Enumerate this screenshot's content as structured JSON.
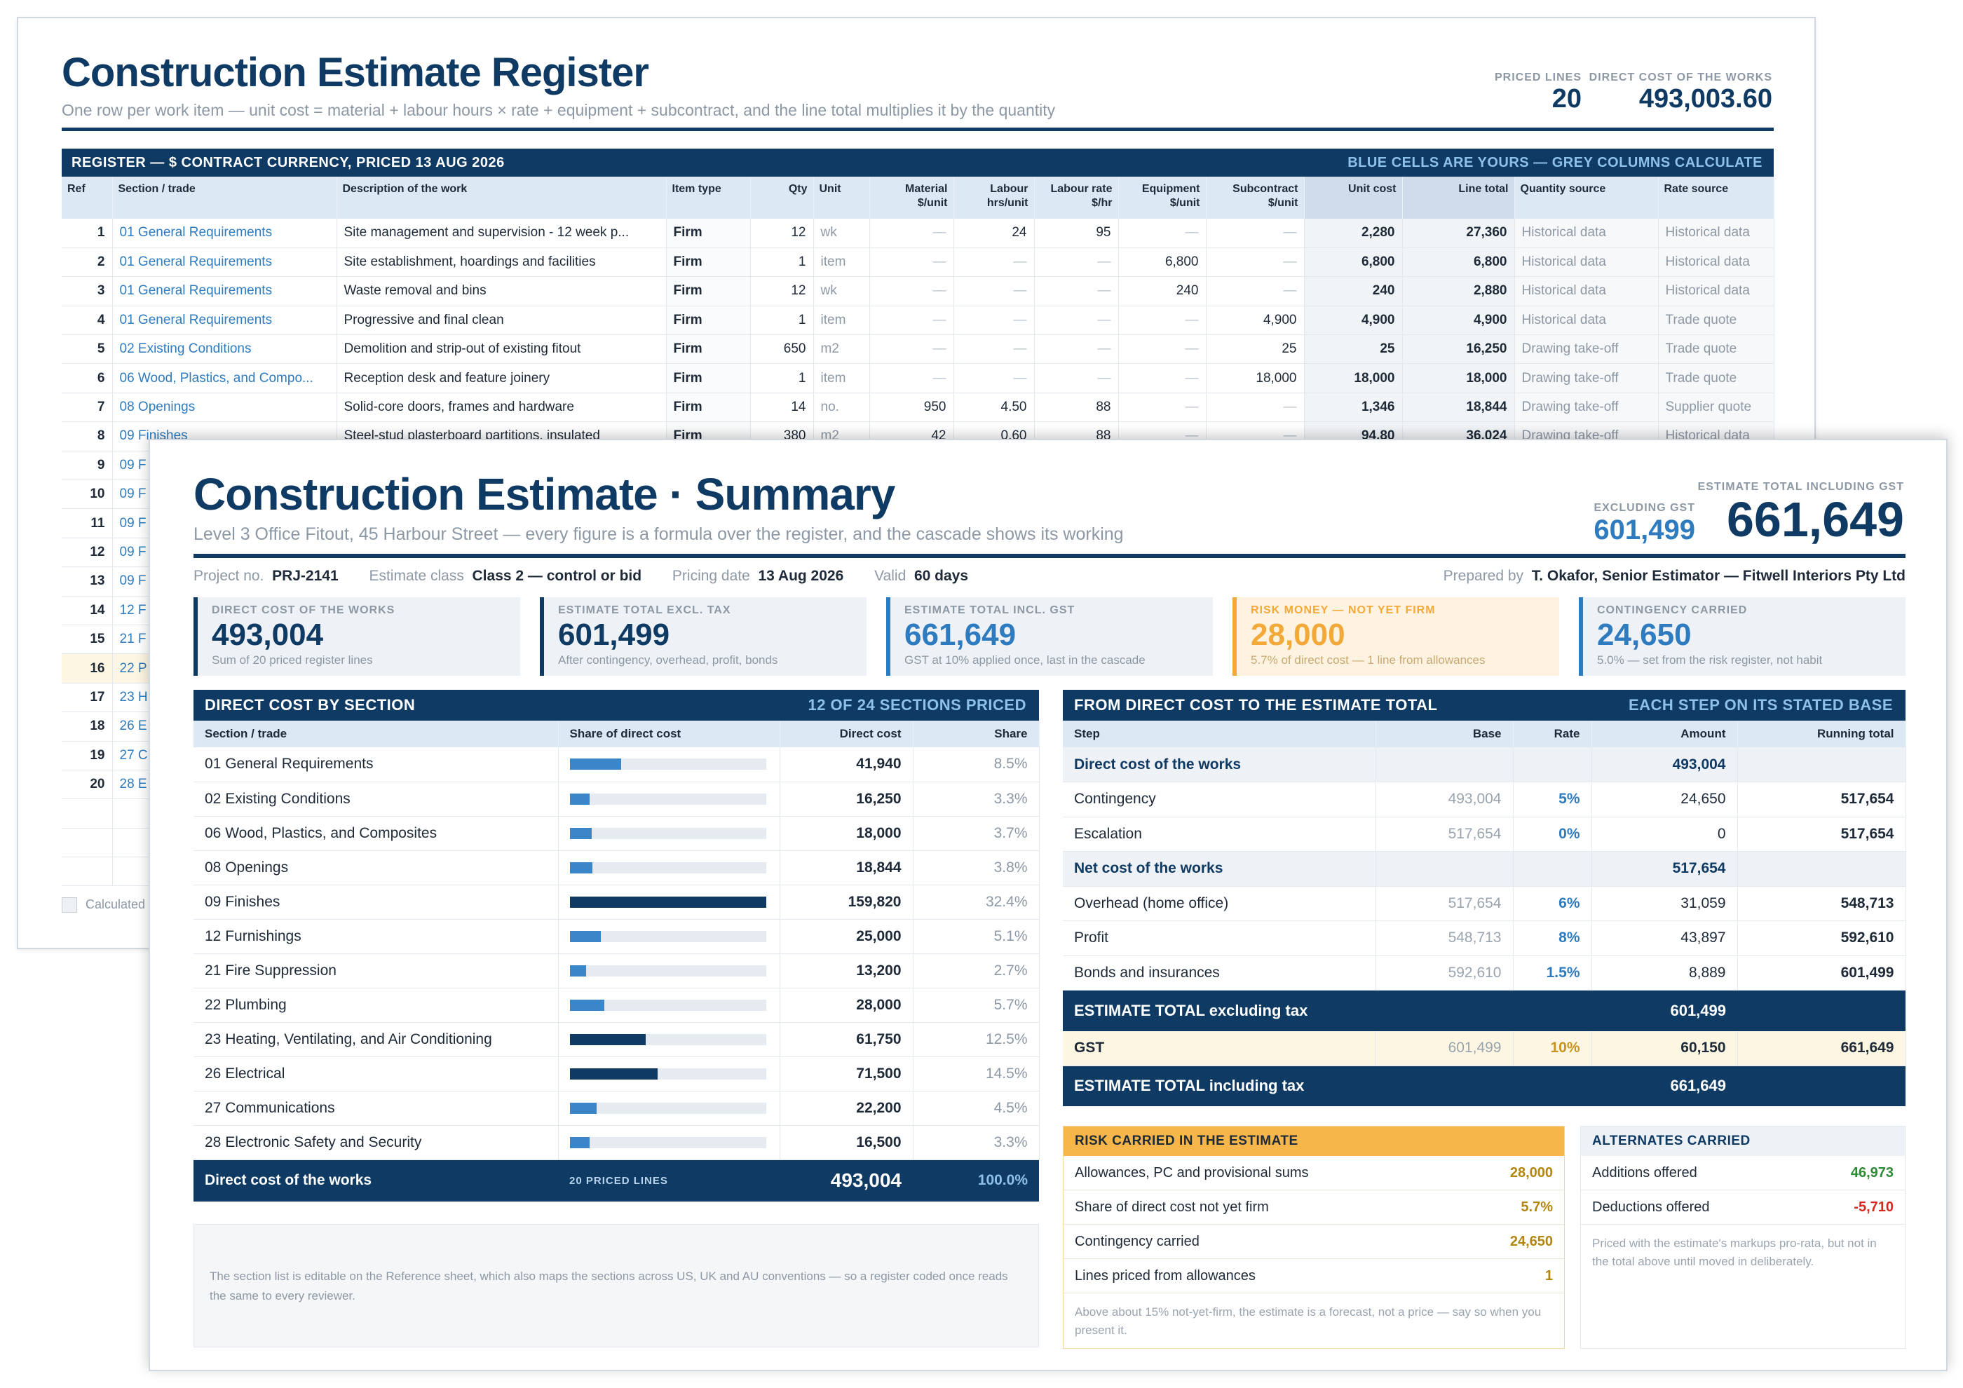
{
  "register": {
    "title": "Construction Estimate Register",
    "subtitle": "One row per work item — unit cost = material + labour hours × rate + equipment + subcontract, and the line total multiplies it by the quantity",
    "kpi_priced_label": "PRICED LINES",
    "kpi_priced_value": "20",
    "kpi_direct_label": "DIRECT COST OF THE WORKS",
    "kpi_direct_value": "493,003.60",
    "band_left": "REGISTER — $ CONTRACT CURRENCY, PRICED 13 AUG 2026",
    "band_right": "BLUE CELLS ARE YOURS — GREY COLUMNS CALCULATE",
    "headers": [
      "Ref",
      "Section / trade",
      "Description of the work",
      "Item type",
      "Qty",
      "Unit",
      "Material $/unit",
      "Labour hrs/unit",
      "Labour rate $/hr",
      "Equipment $/unit",
      "Subcontract $/unit",
      "Unit cost",
      "Line total",
      "Quantity source",
      "Rate source"
    ],
    "rows": [
      [
        "1",
        "01 General Requirements",
        "Site management and supervision - 12 week p...",
        "Firm",
        "12",
        "wk",
        "—",
        "24",
        "95",
        "—",
        "—",
        "2,280",
        "27,360",
        "Historical data",
        "Historical data"
      ],
      [
        "2",
        "01 General Requirements",
        "Site establishment, hoardings and facilities",
        "Firm",
        "1",
        "item",
        "—",
        "—",
        "—",
        "6,800",
        "—",
        "6,800",
        "6,800",
        "Historical data",
        "Historical data"
      ],
      [
        "3",
        "01 General Requirements",
        "Waste removal and bins",
        "Firm",
        "12",
        "wk",
        "—",
        "—",
        "—",
        "240",
        "—",
        "240",
        "2,880",
        "Historical data",
        "Historical data"
      ],
      [
        "4",
        "01 General Requirements",
        "Progressive and final clean",
        "Firm",
        "1",
        "item",
        "—",
        "—",
        "—",
        "—",
        "4,900",
        "4,900",
        "4,900",
        "Historical data",
        "Trade quote"
      ],
      [
        "5",
        "02 Existing Conditions",
        "Demolition and strip-out of existing fitout",
        "Firm",
        "650",
        "m2",
        "—",
        "—",
        "—",
        "—",
        "25",
        "25",
        "16,250",
        "Drawing take-off",
        "Trade quote"
      ],
      [
        "6",
        "06 Wood, Plastics, and Compo...",
        "Reception desk and feature joinery",
        "Firm",
        "1",
        "item",
        "—",
        "—",
        "—",
        "—",
        "18,000",
        "18,000",
        "18,000",
        "Drawing take-off",
        "Trade quote"
      ],
      [
        "7",
        "08 Openings",
        "Solid-core doors, frames and hardware",
        "Firm",
        "14",
        "no.",
        "950",
        "4.50",
        "88",
        "—",
        "—",
        "1,346",
        "18,844",
        "Drawing take-off",
        "Supplier quote"
      ],
      [
        "8",
        "09 Finishes",
        "Steel-stud plasterboard partitions, insulated",
        "Firm",
        "380",
        "m2",
        "42",
        "0.60",
        "88",
        "—",
        "—",
        "94.80",
        "36,024",
        "Drawing take-off",
        "Historical data"
      ],
      [
        "9",
        "09 F",
        "",
        "",
        "",
        "",
        "",
        "",
        "",
        "",
        "",
        "",
        "",
        "",
        ""
      ],
      [
        "10",
        "09 F",
        "",
        "",
        "",
        "",
        "",
        "",
        "",
        "",
        "",
        "",
        "",
        "",
        ""
      ],
      [
        "11",
        "09 F",
        "",
        "",
        "",
        "",
        "",
        "",
        "",
        "",
        "",
        "",
        "",
        "",
        ""
      ],
      [
        "12",
        "09 F",
        "",
        "",
        "",
        "",
        "",
        "",
        "",
        "",
        "",
        "",
        "",
        "",
        ""
      ],
      [
        "13",
        "09 F",
        "",
        "",
        "",
        "",
        "",
        "",
        "",
        "",
        "",
        "",
        "",
        "",
        ""
      ],
      [
        "14",
        "12 F",
        "",
        "",
        "",
        "",
        "",
        "",
        "",
        "",
        "",
        "",
        "",
        "",
        ""
      ],
      [
        "15",
        "21 F",
        "",
        "",
        "",
        "",
        "",
        "",
        "",
        "",
        "",
        "",
        "",
        "",
        ""
      ],
      [
        "16",
        "22 P",
        "",
        "",
        "",
        "",
        "",
        "",
        "",
        "",
        "",
        "",
        "",
        "",
        ""
      ],
      [
        "17",
        "23 H",
        "",
        "",
        "",
        "",
        "",
        "",
        "",
        "",
        "",
        "",
        "",
        "",
        ""
      ],
      [
        "18",
        "26 E",
        "",
        "",
        "",
        "",
        "",
        "",
        "",
        "",
        "",
        "",
        "",
        "",
        ""
      ],
      [
        "19",
        "27 C",
        "",
        "",
        "",
        "",
        "",
        "",
        "",
        "",
        "",
        "",
        "",
        "",
        ""
      ],
      [
        "20",
        "28 E",
        "",
        "",
        "",
        "",
        "",
        "",
        "",
        "",
        "",
        "",
        "",
        "",
        ""
      ]
    ],
    "legend": "Calculated"
  },
  "summary": {
    "title": "Construction Estimate · Summary",
    "subtitle": "Level 3 Office Fitout, 45 Harbour Street — every figure is a formula over the register, and the cascade shows its working",
    "excl_label": "EXCLUDING GST",
    "excl_value": "601,499",
    "incl_label": "ESTIMATE TOTAL INCLUDING GST",
    "incl_value": "661,649",
    "meta": {
      "project_label": "Project no.",
      "project": "PRJ-2141",
      "class_label": "Estimate class",
      "class": "Class 2 — control or bid",
      "date_label": "Pricing date",
      "date": "13 Aug 2026",
      "valid_label": "Valid",
      "valid": "60 days",
      "prep_label": "Prepared by",
      "prep": "T. Okafor, Senior Estimator — Fitwell Interiors Pty Ltd"
    },
    "cards": [
      {
        "label": "DIRECT COST OF THE WORKS",
        "value": "493,004",
        "sub": "Sum of 20 priced register lines"
      },
      {
        "label": "ESTIMATE TOTAL EXCL. TAX",
        "value": "601,499",
        "sub": "After contingency, overhead, profit, bonds"
      },
      {
        "label": "ESTIMATE TOTAL INCL. GST",
        "value": "661,649",
        "sub": "GST at 10% applied once, last in the cascade"
      },
      {
        "label": "RISK MONEY — NOT YET FIRM",
        "value": "28,000",
        "sub": "5.7% of direct cost — 1 line from allowances"
      },
      {
        "label": "CONTINGENCY CARRIED",
        "value": "24,650",
        "sub": "5.0% — set from the risk register, not habit"
      }
    ],
    "sec_head": "DIRECT COST BY SECTION",
    "sec_head_r": "12 OF 24 SECTIONS PRICED",
    "sec_cols": [
      "Section / trade",
      "Share of direct cost",
      "Direct cost",
      "Share"
    ],
    "sections": [
      {
        "name": "01 General Requirements",
        "cost": "41,940",
        "share": "8.5%",
        "frac": 0.085
      },
      {
        "name": "02 Existing Conditions",
        "cost": "16,250",
        "share": "3.3%",
        "frac": 0.033
      },
      {
        "name": "06 Wood, Plastics, and Composites",
        "cost": "18,000",
        "share": "3.7%",
        "frac": 0.037
      },
      {
        "name": "08 Openings",
        "cost": "18,844",
        "share": "3.8%",
        "frac": 0.038
      },
      {
        "name": "09 Finishes",
        "cost": "159,820",
        "share": "32.4%",
        "frac": 0.324
      },
      {
        "name": "12 Furnishings",
        "cost": "25,000",
        "share": "5.1%",
        "frac": 0.051
      },
      {
        "name": "21 Fire Suppression",
        "cost": "13,200",
        "share": "2.7%",
        "frac": 0.027
      },
      {
        "name": "22 Plumbing",
        "cost": "28,000",
        "share": "5.7%",
        "frac": 0.057
      },
      {
        "name": "23 Heating, Ventilating, and Air Conditioning",
        "cost": "61,750",
        "share": "12.5%",
        "frac": 0.125
      },
      {
        "name": "26 Electrical",
        "cost": "71,500",
        "share": "14.5%",
        "frac": 0.145
      },
      {
        "name": "27 Communications",
        "cost": "22,200",
        "share": "4.5%",
        "frac": 0.045
      },
      {
        "name": "28 Electronic Safety and Security",
        "cost": "16,500",
        "share": "3.3%",
        "frac": 0.033
      }
    ],
    "sec_total": {
      "label": "Direct cost of the works",
      "lines": "20 PRICED LINES",
      "value": "493,004",
      "share": "100.0%"
    },
    "sec_note": "The section list is editable on the Reference sheet, which also maps the sections across US, UK and AU conventions — so a register coded once reads the same to every reviewer.",
    "cas_head": "FROM DIRECT COST TO THE ESTIMATE TOTAL",
    "cas_head_r": "EACH STEP ON ITS STATED BASE",
    "cas_cols": [
      "Step",
      "Base",
      "Rate",
      "Amount",
      "Running total"
    ],
    "cascade": [
      {
        "k": "sub",
        "step": "Direct cost of the works",
        "base": "",
        "rate": "",
        "amount": "493,004",
        "run": ""
      },
      {
        "k": "",
        "step": "Contingency",
        "base": "493,004",
        "rate": "5%",
        "amount": "24,650",
        "run": "517,654"
      },
      {
        "k": "",
        "step": "Escalation",
        "base": "517,654",
        "rate": "0%",
        "amount": "0",
        "run": "517,654"
      },
      {
        "k": "sub",
        "step": "Net cost of the works",
        "base": "",
        "rate": "",
        "amount": "517,654",
        "run": ""
      },
      {
        "k": "",
        "step": "Overhead (home office)",
        "base": "517,654",
        "rate": "6%",
        "amount": "31,059",
        "run": "548,713"
      },
      {
        "k": "",
        "step": "Profit",
        "base": "548,713",
        "rate": "8%",
        "amount": "43,897",
        "run": "592,610"
      },
      {
        "k": "",
        "step": "Bonds and insurances",
        "base": "592,610",
        "rate": "1.5%",
        "amount": "8,889",
        "run": "601,499"
      },
      {
        "k": "tot",
        "step": "ESTIMATE TOTAL excluding tax",
        "base": "",
        "rate": "",
        "amount": "601,499",
        "run": ""
      },
      {
        "k": "gst",
        "step": "GST",
        "base": "601,499",
        "rate": "10%",
        "amount": "60,150",
        "run": "661,649"
      },
      {
        "k": "tot",
        "step": "ESTIMATE TOTAL including tax",
        "base": "",
        "rate": "",
        "amount": "661,649",
        "run": ""
      }
    ],
    "risk_head": "RISK CARRIED IN THE ESTIMATE",
    "risk": [
      {
        "label": "Allowances, PC and provisional sums",
        "value": "28,000"
      },
      {
        "label": "Share of direct cost not yet firm",
        "value": "5.7%"
      },
      {
        "label": "Contingency carried",
        "value": "24,650"
      },
      {
        "label": "Lines priced from allowances",
        "value": "1"
      }
    ],
    "risk_note": "Above about 15% not-yet-firm, the estimate is a forecast, not a price — say so when you present it.",
    "alt_head": "ALTERNATES CARRIED",
    "alt": [
      {
        "label": "Additions offered",
        "value": "46,973"
      },
      {
        "label": "Deductions offered",
        "value": "-5,710"
      }
    ],
    "alt_note": "Priced with the estimate's markups pro-rata, but not in the total above until moved in deliberately."
  }
}
